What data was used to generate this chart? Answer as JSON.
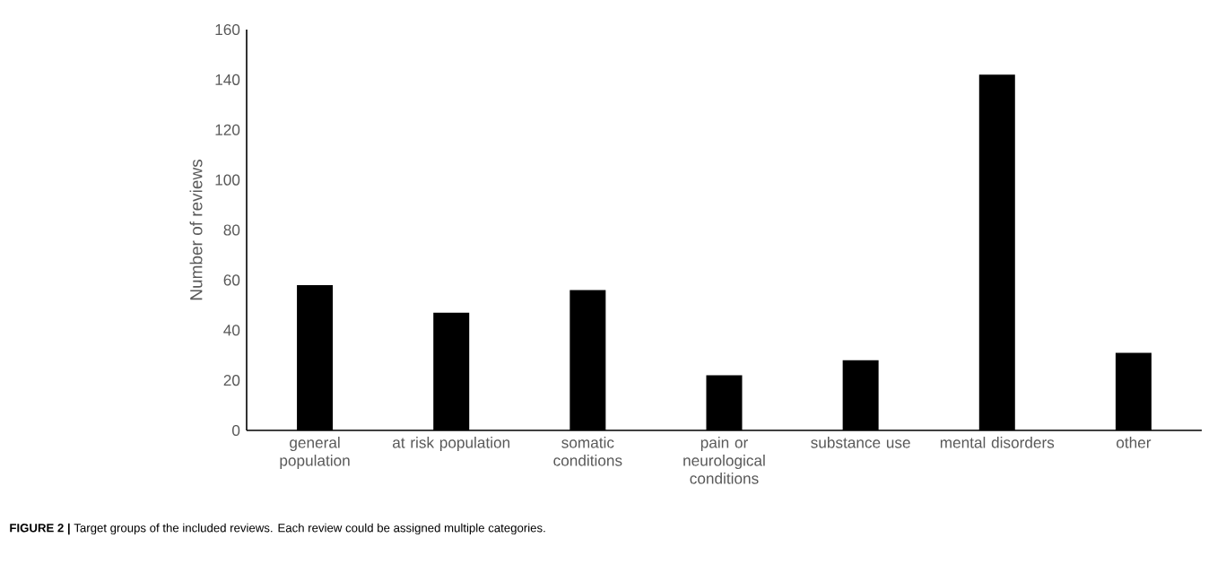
{
  "chart_data": {
    "type": "bar",
    "ylabel": "Number of reviews",
    "categories": [
      "general population",
      "at risk population",
      "somatic conditions",
      "pain or neurological conditions",
      "substance use",
      "mental disorders",
      "other"
    ],
    "values": [
      58,
      47,
      56,
      22,
      28,
      142,
      31
    ],
    "color": "#000000",
    "ylim": [
      0,
      160
    ],
    "yticks": [
      0,
      20,
      40,
      60,
      80,
      100,
      120,
      140,
      160
    ],
    "annotations": [
      "**FIGURE 2 |** Target groups of the included reviews. Each review could be assigned multiple categories."
    ]
  }
}
